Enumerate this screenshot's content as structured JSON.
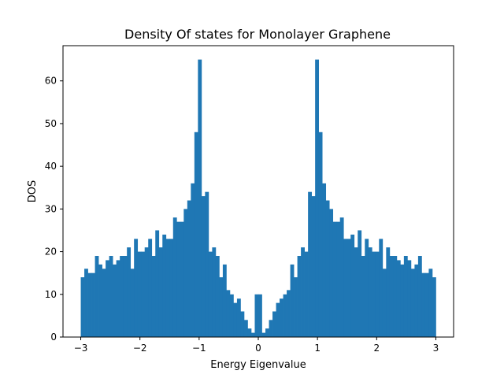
{
  "chart_data": {
    "type": "bar",
    "title": "Density Of states for Monolayer Graphene",
    "xlabel": "Energy Eigenvalue",
    "ylabel": "DOS",
    "xlim": [
      -3.3,
      3.3
    ],
    "ylim": [
      0,
      68.25
    ],
    "xticks": [
      -3,
      -2,
      -1,
      0,
      1,
      2,
      3
    ],
    "xtick_labels": [
      "−3",
      "−2",
      "−1",
      "0",
      "1",
      "2",
      "3"
    ],
    "yticks": [
      0,
      10,
      20,
      30,
      40,
      50,
      60
    ],
    "ytick_labels": [
      "0",
      "10",
      "20",
      "30",
      "40",
      "50",
      "60"
    ],
    "grid": false,
    "legend": "none",
    "bar_color": "#1f77b4",
    "bins": {
      "start": -3.0,
      "end": 3.0,
      "count": 100
    },
    "values": [
      14,
      16,
      15,
      15,
      19,
      17,
      16,
      18,
      19,
      17,
      18,
      19,
      19,
      21,
      16,
      23,
      20,
      20,
      21,
      23,
      19,
      25,
      21,
      24,
      23,
      23,
      28,
      27,
      27,
      30,
      32,
      36,
      48,
      65,
      33,
      34,
      20,
      21,
      19,
      14,
      17,
      11,
      10,
      8,
      9,
      6,
      4,
      2,
      1,
      10,
      10,
      1,
      2,
      4,
      6,
      8,
      9,
      10,
      11,
      17,
      14,
      19,
      21,
      20,
      34,
      33,
      65,
      48,
      36,
      32,
      30,
      27,
      27,
      28,
      23,
      23,
      24,
      21,
      25,
      19,
      23,
      21,
      20,
      20,
      23,
      16,
      21,
      19,
      19,
      18,
      17,
      19,
      18,
      16,
      17,
      19,
      15,
      15,
      16,
      14
    ]
  }
}
